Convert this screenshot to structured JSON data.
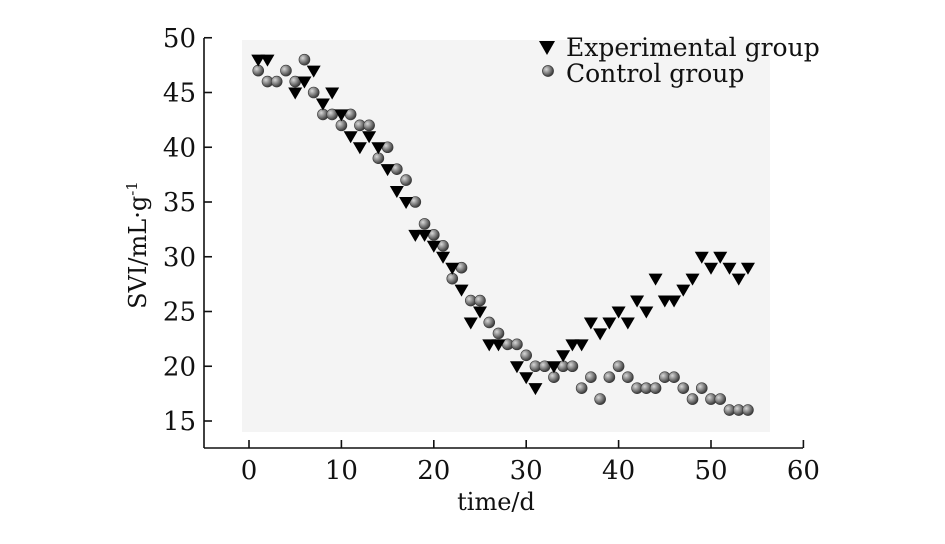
{
  "chart_data": {
    "type": "scatter",
    "xlabel": "time/d",
    "ylabel": "SVI/mL·g",
    "ylabel_superscript": "-1",
    "xlim": [
      -5,
      60
    ],
    "ylim": [
      12.5,
      50
    ],
    "x_ticks": [
      0,
      10,
      20,
      30,
      40,
      50,
      60
    ],
    "y_ticks": [
      15,
      20,
      25,
      30,
      35,
      40,
      45,
      50
    ],
    "legend_position": "top-right",
    "series": [
      {
        "name": "Experimental group",
        "marker": "triangle-down",
        "color": "#000000",
        "points": [
          [
            1,
            48
          ],
          [
            2,
            48
          ],
          [
            5,
            45
          ],
          [
            6,
            46
          ],
          [
            7,
            47
          ],
          [
            8,
            44
          ],
          [
            9,
            45
          ],
          [
            10,
            43
          ],
          [
            11,
            41
          ],
          [
            12,
            40
          ],
          [
            13,
            41
          ],
          [
            14,
            40
          ],
          [
            15,
            38
          ],
          [
            16,
            36
          ],
          [
            17,
            35
          ],
          [
            18,
            32
          ],
          [
            19,
            32
          ],
          [
            20,
            31
          ],
          [
            21,
            30
          ],
          [
            22,
            29
          ],
          [
            23,
            27
          ],
          [
            24,
            24
          ],
          [
            25,
            25
          ],
          [
            26,
            22
          ],
          [
            27,
            22
          ],
          [
            29,
            20
          ],
          [
            30,
            19
          ],
          [
            31,
            18
          ],
          [
            33,
            20
          ],
          [
            34,
            21
          ],
          [
            35,
            22
          ],
          [
            36,
            22
          ],
          [
            37,
            24
          ],
          [
            38,
            23
          ],
          [
            39,
            24
          ],
          [
            40,
            25
          ],
          [
            41,
            24
          ],
          [
            42,
            26
          ],
          [
            43,
            25
          ],
          [
            44,
            28
          ],
          [
            45,
            26
          ],
          [
            46,
            26
          ],
          [
            47,
            27
          ],
          [
            48,
            28
          ],
          [
            49,
            30
          ],
          [
            50,
            29
          ],
          [
            51,
            30
          ],
          [
            52,
            29
          ],
          [
            53,
            28
          ],
          [
            54,
            29
          ]
        ]
      },
      {
        "name": "Control group",
        "marker": "circle",
        "color": "#7a7a7a",
        "points": [
          [
            1,
            47
          ],
          [
            2,
            46
          ],
          [
            3,
            46
          ],
          [
            4,
            47
          ],
          [
            5,
            46
          ],
          [
            6,
            48
          ],
          [
            7,
            45
          ],
          [
            8,
            43
          ],
          [
            9,
            43
          ],
          [
            10,
            42
          ],
          [
            11,
            43
          ],
          [
            12,
            42
          ],
          [
            13,
            42
          ],
          [
            14,
            39
          ],
          [
            15,
            40
          ],
          [
            16,
            38
          ],
          [
            17,
            37
          ],
          [
            18,
            35
          ],
          [
            19,
            33
          ],
          [
            20,
            32
          ],
          [
            21,
            31
          ],
          [
            22,
            28
          ],
          [
            23,
            29
          ],
          [
            24,
            26
          ],
          [
            25,
            26
          ],
          [
            26,
            24
          ],
          [
            27,
            23
          ],
          [
            28,
            22
          ],
          [
            29,
            22
          ],
          [
            30,
            21
          ],
          [
            31,
            20
          ],
          [
            32,
            20
          ],
          [
            33,
            19
          ],
          [
            34,
            20
          ],
          [
            35,
            20
          ],
          [
            36,
            18
          ],
          [
            37,
            19
          ],
          [
            38,
            17
          ],
          [
            39,
            19
          ],
          [
            40,
            20
          ],
          [
            41,
            19
          ],
          [
            42,
            18
          ],
          [
            43,
            18
          ],
          [
            44,
            18
          ],
          [
            45,
            19
          ],
          [
            46,
            19
          ],
          [
            47,
            18
          ],
          [
            48,
            17
          ],
          [
            49,
            18
          ],
          [
            50,
            17
          ],
          [
            51,
            17
          ],
          [
            52,
            16
          ],
          [
            53,
            16
          ],
          [
            54,
            16
          ]
        ]
      }
    ]
  }
}
